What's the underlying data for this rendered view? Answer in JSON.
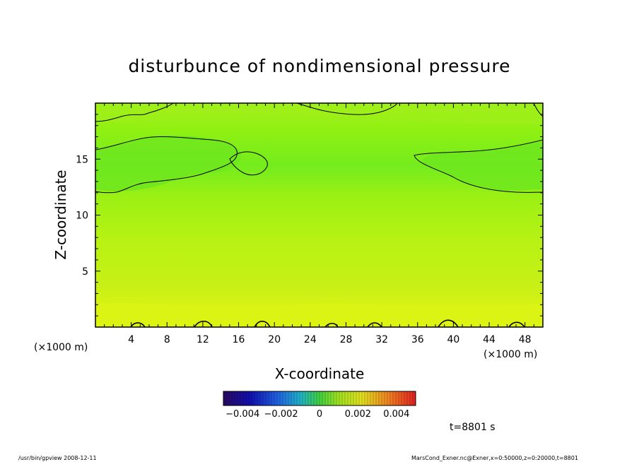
{
  "chart_data": {
    "type": "heatmap",
    "title": "disturbunce of nondimensional pressure",
    "xlabel": "X-coordinate",
    "ylabel": "Z-coordinate",
    "x_unit_left": "(×1000 m)",
    "x_unit_right": "(×1000 m)",
    "xlim": [
      0,
      50
    ],
    "ylim": [
      0,
      20
    ],
    "x_ticks": [
      4,
      8,
      12,
      16,
      20,
      24,
      28,
      32,
      36,
      40,
      44,
      48
    ],
    "y_ticks": [
      5,
      10,
      15
    ],
    "colorbar": {
      "range": [
        -0.005,
        0.005
      ],
      "tick_labels": [
        "−0.004",
        "−0.002",
        "0",
        "0.002",
        "0.004"
      ],
      "tick_values": [
        -0.004,
        -0.002,
        0,
        0.002,
        0.004
      ]
    },
    "time_label": "t=8801 s",
    "footer_left": "/usr/bin/gpview   2008-12-11",
    "footer_right": "MarsCond_Exner.nc@Exner,x=0:50000,z=0:20000,t=8801",
    "field_description": {
      "near_surface_value": 0.0007,
      "mid_level_value": 0.0004,
      "upper_level_value": 0.0002,
      "negative_lobes_z_range": [
        12,
        16
      ]
    }
  }
}
